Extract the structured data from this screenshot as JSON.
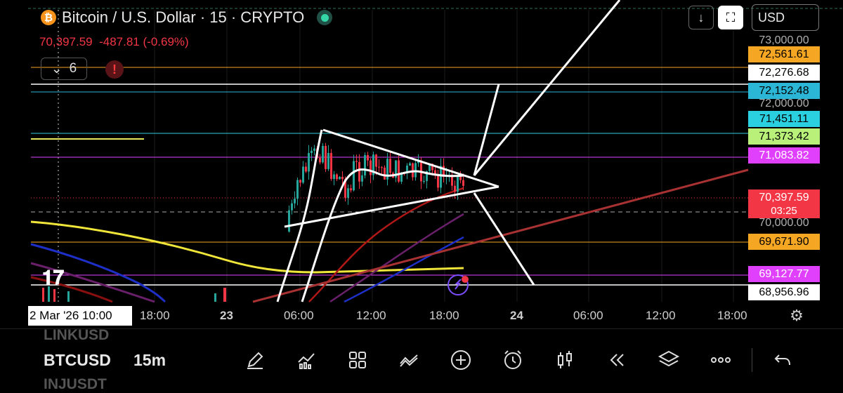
{
  "header": {
    "symbol_title": "Bitcoin / U.S. Dollar · 15 · CRYPTO",
    "last_price": "70,397.59",
    "change": "-487.81",
    "change_pct": "(-0.69%)",
    "indicator_count": "6",
    "currency": "USD"
  },
  "price_axis": {
    "labels": [
      {
        "text": "73,000.00",
        "bg": "",
        "fg": "#b0b0b0"
      },
      {
        "text": "72,561.61",
        "bg": "#f5a623",
        "fg": "#000000"
      },
      {
        "text": "72,276.68",
        "bg": "#ffffff",
        "fg": "#000000"
      },
      {
        "text": "72,152.48",
        "bg": "#2bb6d6",
        "fg": "#000000"
      },
      {
        "text": "72,000.00",
        "bg": "",
        "fg": "#b0b0b0"
      },
      {
        "text": "71,451.11",
        "bg": "#2bd0e0",
        "fg": "#000000"
      },
      {
        "text": "71,373.42",
        "bg": "#b8f07a",
        "fg": "#000000"
      },
      {
        "text": "71,083.82",
        "bg": "#e040fb",
        "fg": "#ffffff"
      },
      {
        "text": "70,397.59",
        "bg": "#f23645",
        "fg": "#ffffff"
      },
      {
        "text": "03:25",
        "bg": "#f23645",
        "fg": "#ffffff"
      },
      {
        "text": "70,000.00",
        "bg": "",
        "fg": "#b0b0b0"
      },
      {
        "text": "69,671.90",
        "bg": "#f5a623",
        "fg": "#000000"
      },
      {
        "text": "69,127.77",
        "bg": "#e040fb",
        "fg": "#ffffff"
      },
      {
        "text": "68,956.96",
        "bg": "#ffffff",
        "fg": "#000000"
      }
    ]
  },
  "time_axis": {
    "cursor_label": "2 Mar '26  10:00",
    "labels": [
      "18:00",
      "23",
      "06:00",
      "12:00",
      "18:00",
      "24",
      "06:00",
      "12:00",
      "18:00"
    ]
  },
  "bottom": {
    "symbol_above": "LINKUSD",
    "symbol": "BTCUSD",
    "symbol_below": "INJUSDT",
    "interval": "15m",
    "tools": [
      "pencil-icon",
      "indicators-icon",
      "grid-icon",
      "drawing-icon",
      "add-icon",
      "alarm-icon",
      "candles-icon",
      "replay-icon",
      "layers-icon",
      "more-icon",
      "undo-icon"
    ]
  },
  "colors": {
    "up": "#26a69a",
    "down": "#f23645",
    "accent": "#2962ff"
  }
}
